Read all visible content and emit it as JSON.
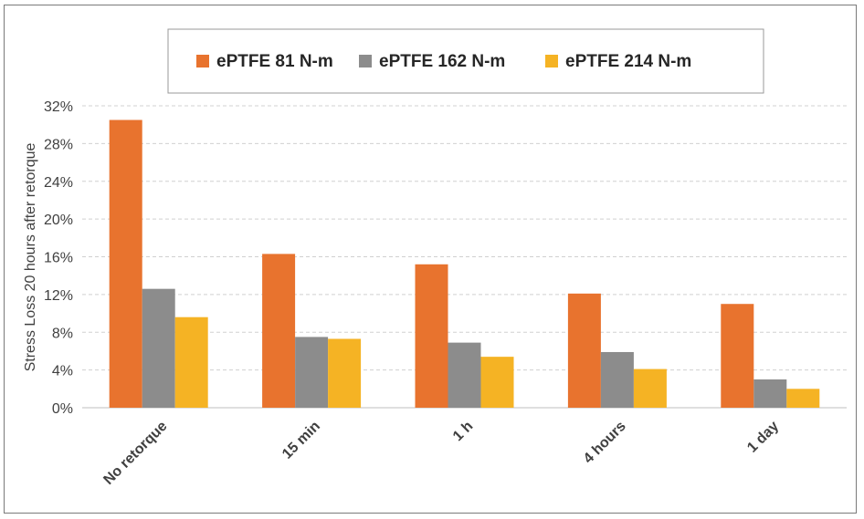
{
  "chart_data": {
    "type": "bar",
    "title": "",
    "ylabel": "Stress Loss 20 hours after retorque",
    "xlabel": "",
    "categories": [
      "No retorque",
      "15 min",
      "1 h",
      "4 hours",
      "1 day"
    ],
    "series": [
      {
        "name": "ePTFE 81 N-m",
        "color": "#E8732E",
        "values": [
          30.5,
          16.3,
          15.2,
          12.1,
          11.0
        ]
      },
      {
        "name": "ePTFE 162 N-m",
        "color": "#8C8C8C",
        "values": [
          12.6,
          7.5,
          6.9,
          5.9,
          3.0
        ]
      },
      {
        "name": "ePTFE 214 N-m",
        "color": "#F5B324",
        "values": [
          9.6,
          7.3,
          5.4,
          4.1,
          2.0
        ]
      }
    ],
    "ylim": [
      0,
      32
    ],
    "yticks": [
      "0%",
      "4%",
      "8%",
      "12%",
      "16%",
      "20%",
      "24%",
      "28%",
      "32%"
    ],
    "grid": true,
    "legend": "top"
  }
}
